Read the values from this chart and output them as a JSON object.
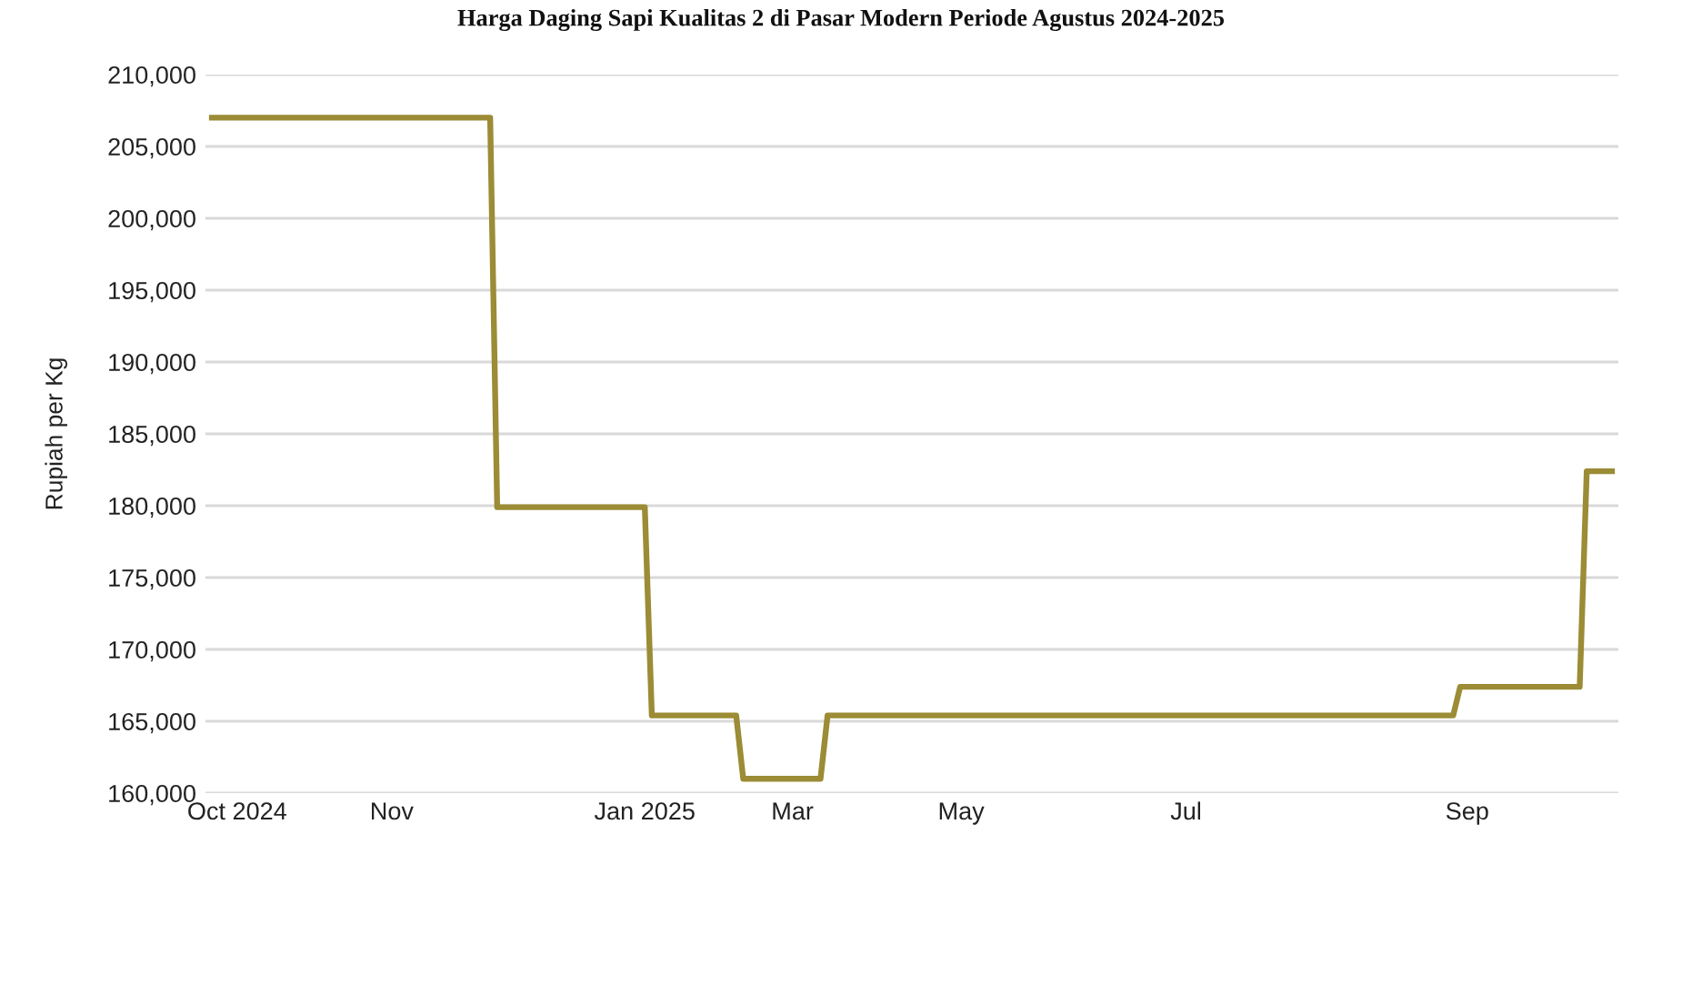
{
  "chart_data": {
    "type": "line",
    "title": "Harga Daging Sapi Kualitas 2 di Pasar Modern Periode Agustus 2024-2025",
    "ylabel": "Rupiah per Kg",
    "categories": [
      null,
      null,
      null,
      null,
      "Oct 2024",
      null,
      null,
      null,
      null,
      null,
      null,
      null,
      null,
      null,
      null,
      null,
      null,
      null,
      null,
      null,
      null,
      null,
      null,
      null,
      null,
      null,
      "Nov",
      null,
      null,
      null,
      null,
      null,
      null,
      null,
      null,
      null,
      null,
      null,
      null,
      null,
      null,
      null,
      null,
      null,
      null,
      null,
      null,
      null,
      null,
      null,
      null,
      null,
      null,
      null,
      null,
      null,
      null,
      null,
      null,
      null,
      null,
      null,
      "Jan 2025",
      null,
      null,
      null,
      null,
      null,
      null,
      null,
      null,
      null,
      null,
      null,
      null,
      null,
      null,
      null,
      null,
      null,
      null,
      null,
      null,
      "Mar",
      null,
      null,
      null,
      null,
      null,
      null,
      null,
      null,
      null,
      null,
      null,
      null,
      null,
      null,
      null,
      null,
      null,
      null,
      null,
      null,
      null,
      null,
      null,
      "May",
      null,
      null,
      null,
      null,
      null,
      null,
      null,
      null,
      null,
      null,
      null,
      null,
      null,
      null,
      null,
      null,
      null,
      null,
      null,
      null,
      null,
      null,
      null,
      null,
      null,
      null,
      null,
      null,
      null,
      null,
      null,
      "Jul",
      null,
      null,
      null,
      null,
      null,
      null,
      null,
      null,
      null,
      null,
      null,
      null,
      null,
      null,
      null,
      null,
      null,
      null,
      null,
      null,
      null,
      null,
      null,
      null,
      null,
      null,
      null,
      null,
      null,
      null,
      null,
      null,
      null,
      null,
      null,
      null,
      null,
      null,
      null,
      "Sep",
      null,
      null,
      null,
      null,
      null,
      null,
      null,
      null,
      null,
      null,
      null,
      null,
      null,
      null,
      null,
      null,
      null,
      null,
      null,
      null,
      null
    ],
    "series": [
      {
        "color": "#9b8c35",
        "values": [
          207000,
          207000,
          207000,
          207000,
          207000,
          207000,
          207000,
          207000,
          207000,
          207000,
          207000,
          207000,
          207000,
          207000,
          207000,
          207000,
          207000,
          207000,
          207000,
          207000,
          207000,
          207000,
          207000,
          207000,
          207000,
          207000,
          207000,
          207000,
          207000,
          207000,
          207000,
          207000,
          207000,
          207000,
          207000,
          207000,
          207000,
          207000,
          207000,
          207000,
          207000,
          179900,
          179900,
          179900,
          179900,
          179900,
          179900,
          179900,
          179900,
          179900,
          179900,
          179900,
          179900,
          179900,
          179900,
          179900,
          179900,
          179900,
          179900,
          179900,
          179900,
          179900,
          179900,
          165400,
          165400,
          165400,
          165400,
          165400,
          165400,
          165400,
          165400,
          165400,
          165400,
          165400,
          165400,
          165400,
          161000,
          161000,
          161000,
          161000,
          161000,
          161000,
          161000,
          161000,
          161000,
          161000,
          161000,
          161000,
          165400,
          165400,
          165400,
          165400,
          165400,
          165400,
          165400,
          165400,
          165400,
          165400,
          165400,
          165400,
          165400,
          165400,
          165400,
          165400,
          165400,
          165400,
          165400,
          165400,
          165400,
          165400,
          165400,
          165400,
          165400,
          165400,
          165400,
          165400,
          165400,
          165400,
          165400,
          165400,
          165400,
          165400,
          165400,
          165400,
          165400,
          165400,
          165400,
          165400,
          165400,
          165400,
          165400,
          165400,
          165400,
          165400,
          165400,
          165400,
          165400,
          165400,
          165400,
          165400,
          165400,
          165400,
          165400,
          165400,
          165400,
          165400,
          165400,
          165400,
          165400,
          165400,
          165400,
          165400,
          165400,
          165400,
          165400,
          165400,
          165400,
          165400,
          165400,
          165400,
          165400,
          165400,
          165400,
          165400,
          165400,
          165400,
          165400,
          165400,
          165400,
          165400,
          165400,
          165400,
          165400,
          165400,
          165400,
          165400,
          165400,
          165400,
          167400,
          167400,
          167400,
          167400,
          167400,
          167400,
          167400,
          167400,
          167400,
          167400,
          167400,
          167400,
          167400,
          167400,
          167400,
          167400,
          167400,
          167400,
          182400,
          182400,
          182400,
          182400,
          182400
        ]
      }
    ],
    "ylim": [
      160000,
      210000
    ],
    "yticks": [
      {
        "value": 160000,
        "label": "160,000"
      },
      {
        "value": 165000,
        "label": "165,000"
      },
      {
        "value": 170000,
        "label": "170,000"
      },
      {
        "value": 175000,
        "label": "175,000"
      },
      {
        "value": 180000,
        "label": "180,000"
      },
      {
        "value": 185000,
        "label": "185,000"
      },
      {
        "value": 190000,
        "label": "190,000"
      },
      {
        "value": 195000,
        "label": "195,000"
      },
      {
        "value": 200000,
        "label": "200,000"
      },
      {
        "value": 205000,
        "label": "205,000"
      },
      {
        "value": 210000,
        "label": "210,000"
      }
    ],
    "grid": "y",
    "line_style": "solid"
  }
}
